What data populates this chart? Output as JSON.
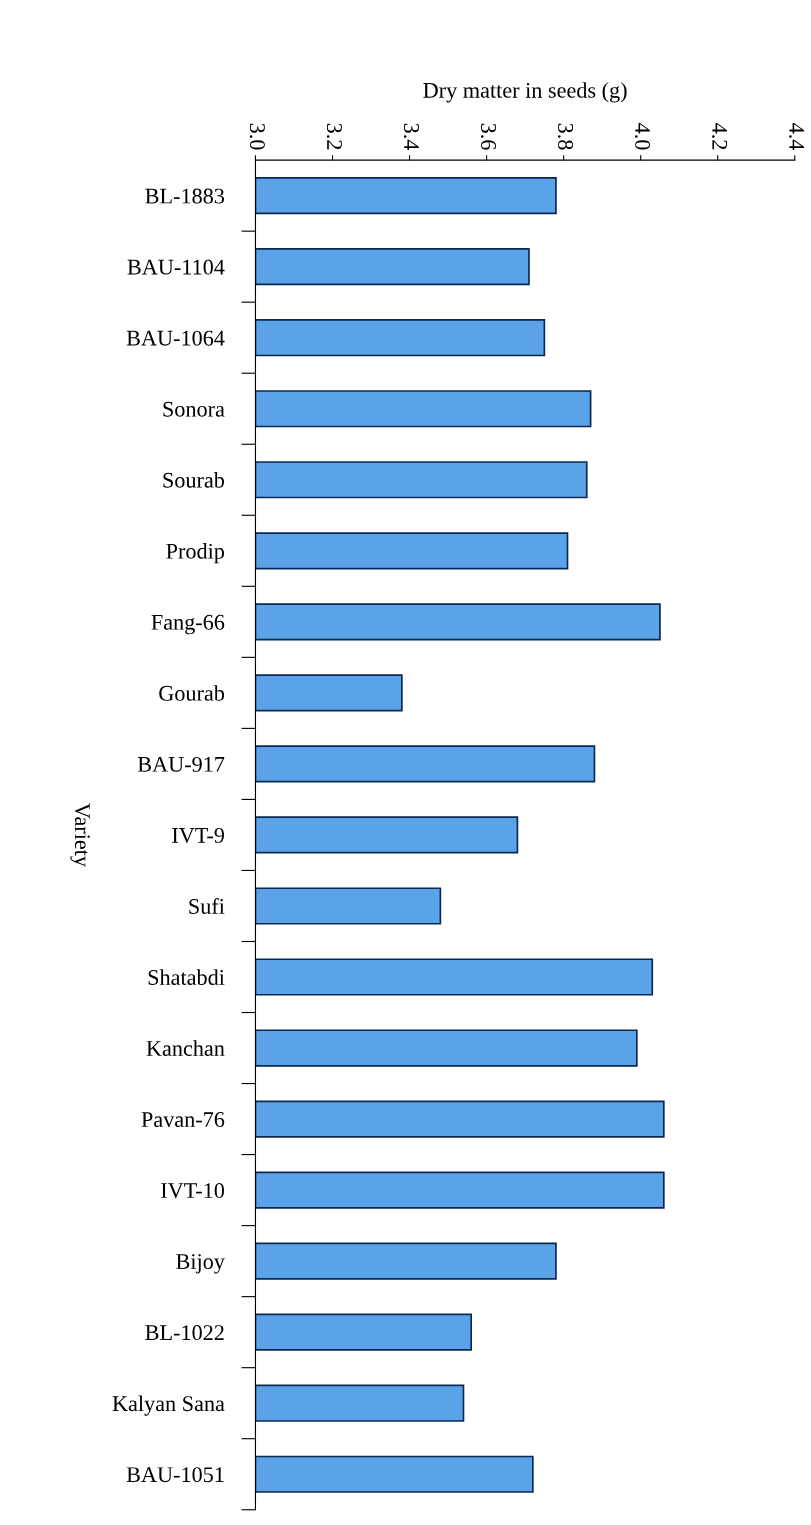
{
  "chart_data": {
    "type": "bar",
    "orientation": "horizontal",
    "xlabel": "Dry matter in seeds (g)",
    "ylabel": "Variety",
    "categories": [
      "BL-1883",
      "BAU-1104",
      "BAU-1064",
      "Sonora",
      "Sourab",
      "Prodip",
      "Fang-66",
      "Gourab",
      "BAU-917",
      "IVT-9",
      "Sufi",
      "Shatabdi",
      "Kanchan",
      "Pavan-76",
      "IVT-10",
      "Bijoy",
      "BL-1022",
      "Kalyan Sana",
      "BAU-1051"
    ],
    "values": [
      3.78,
      3.71,
      3.75,
      3.87,
      3.86,
      3.81,
      4.05,
      3.38,
      3.88,
      3.68,
      3.48,
      4.03,
      3.99,
      4.06,
      4.06,
      3.78,
      3.56,
      3.54,
      3.72
    ],
    "color": "#5ba3e8",
    "xlim": [
      3.0,
      4.4
    ],
    "xticks": [
      {
        "value": 3.0,
        "label": "3.0"
      },
      {
        "value": 3.2,
        "label": "3.2"
      },
      {
        "value": 3.4,
        "label": "3.4"
      },
      {
        "value": 3.6,
        "label": "3.6"
      },
      {
        "value": 3.8,
        "label": "3.8"
      },
      {
        "value": 4.0,
        "label": "4.0"
      },
      {
        "value": 4.2,
        "label": "4.2"
      },
      {
        "value": 4.4,
        "label": "4.4"
      }
    ],
    "grid": false
  }
}
